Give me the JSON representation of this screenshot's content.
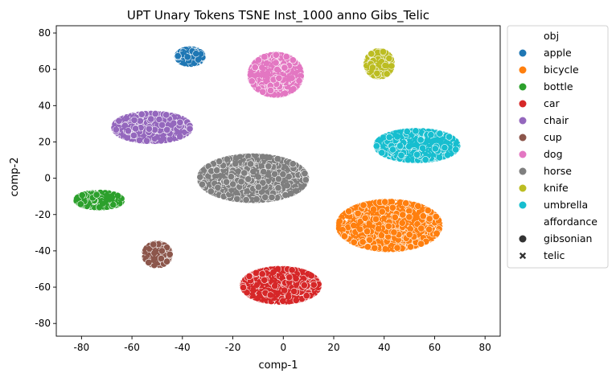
{
  "chart_data": {
    "type": "scatter",
    "title": "UPT Unary Tokens TSNE Inst_1000 anno Gibs_Telic",
    "xlabel": "comp-1",
    "ylabel": "comp-2",
    "xlim": [
      -90,
      86
    ],
    "ylim": [
      -87,
      84
    ],
    "xticks": [
      -80,
      -60,
      -40,
      -20,
      0,
      20,
      40,
      60,
      80
    ],
    "yticks": [
      -80,
      -60,
      -40,
      -20,
      0,
      20,
      40,
      60,
      80
    ],
    "grid": false,
    "legend_position": "outside-right",
    "legend": {
      "hue_title": "obj",
      "style_title": "affordance",
      "style_items": [
        {
          "label": "gibsonian",
          "marker": "circle"
        },
        {
          "label": "telic",
          "marker": "x"
        }
      ]
    },
    "series": [
      {
        "name": "apple",
        "color": "#1f77b4",
        "center": [
          -37,
          67
        ],
        "spread": [
          5,
          4
        ],
        "points": 320
      },
      {
        "name": "bicycle",
        "color": "#ff7f0e",
        "center": [
          42,
          -26
        ],
        "spread": [
          20,
          13
        ],
        "points": 1400
      },
      {
        "name": "bottle",
        "color": "#2ca02c",
        "center": [
          -73,
          -12
        ],
        "spread": [
          9,
          4
        ],
        "points": 380
      },
      {
        "name": "car",
        "color": "#d62728",
        "center": [
          -1,
          -59
        ],
        "spread": [
          15,
          9
        ],
        "points": 1200
      },
      {
        "name": "chair",
        "color": "#9467bd",
        "center": [
          -52,
          28
        ],
        "spread": [
          15,
          7.5
        ],
        "points": 1100
      },
      {
        "name": "cup",
        "color": "#8c564b",
        "center": [
          -50,
          -42
        ],
        "spread": [
          5,
          6
        ],
        "points": 230
      },
      {
        "name": "dog",
        "color": "#e377c2",
        "center": [
          -3,
          57
        ],
        "spread": [
          10,
          11
        ],
        "points": 900
      },
      {
        "name": "horse",
        "color": "#7f7f7f",
        "center": [
          -12,
          0
        ],
        "spread": [
          21,
          12
        ],
        "points": 1600
      },
      {
        "name": "knife",
        "color": "#bcbd22",
        "center": [
          38,
          63
        ],
        "spread": [
          5,
          7
        ],
        "points": 330
      },
      {
        "name": "umbrella",
        "color": "#17becf",
        "center": [
          53,
          18
        ],
        "spread": [
          16,
          8
        ],
        "points": 1200
      }
    ]
  }
}
